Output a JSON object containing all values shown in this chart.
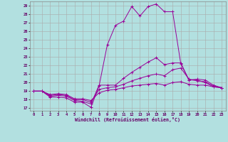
{
  "xlabel": "Windchill (Refroidissement éolien,°C)",
  "background_color": "#b2e0e0",
  "line_color": "#990099",
  "xlim": [
    -0.5,
    23.5
  ],
  "ylim": [
    16.7,
    29.5
  ],
  "yticks": [
    17,
    18,
    19,
    20,
    21,
    22,
    23,
    24,
    25,
    26,
    27,
    28,
    29
  ],
  "xticks": [
    0,
    1,
    2,
    3,
    4,
    5,
    6,
    7,
    8,
    9,
    10,
    11,
    12,
    13,
    14,
    15,
    16,
    17,
    18,
    19,
    20,
    21,
    22,
    23
  ],
  "series": [
    [
      19.0,
      19.0,
      18.3,
      18.3,
      18.2,
      17.7,
      17.7,
      17.1,
      19.6,
      24.4,
      26.7,
      27.2,
      28.9,
      27.8,
      28.9,
      29.2,
      28.3,
      28.3,
      22.2,
      20.3,
      20.3,
      20.0,
      19.5,
      19.4
    ],
    [
      19.0,
      19.0,
      18.4,
      18.5,
      18.4,
      17.9,
      17.8,
      17.5,
      19.7,
      19.7,
      19.7,
      20.5,
      21.2,
      21.8,
      22.4,
      22.9,
      22.1,
      22.3,
      22.3,
      20.3,
      20.4,
      20.3,
      19.7,
      19.4
    ],
    [
      19.0,
      19.0,
      18.5,
      18.6,
      18.5,
      18.0,
      18.0,
      17.7,
      19.2,
      19.4,
      19.5,
      19.8,
      20.2,
      20.5,
      20.8,
      21.0,
      20.8,
      21.5,
      21.7,
      20.4,
      20.2,
      20.1,
      19.6,
      19.4
    ],
    [
      19.0,
      19.0,
      18.6,
      18.7,
      18.6,
      18.1,
      18.1,
      17.9,
      18.8,
      19.1,
      19.2,
      19.4,
      19.6,
      19.7,
      19.8,
      19.9,
      19.7,
      20.0,
      20.1,
      19.8,
      19.7,
      19.7,
      19.5,
      19.4
    ]
  ]
}
